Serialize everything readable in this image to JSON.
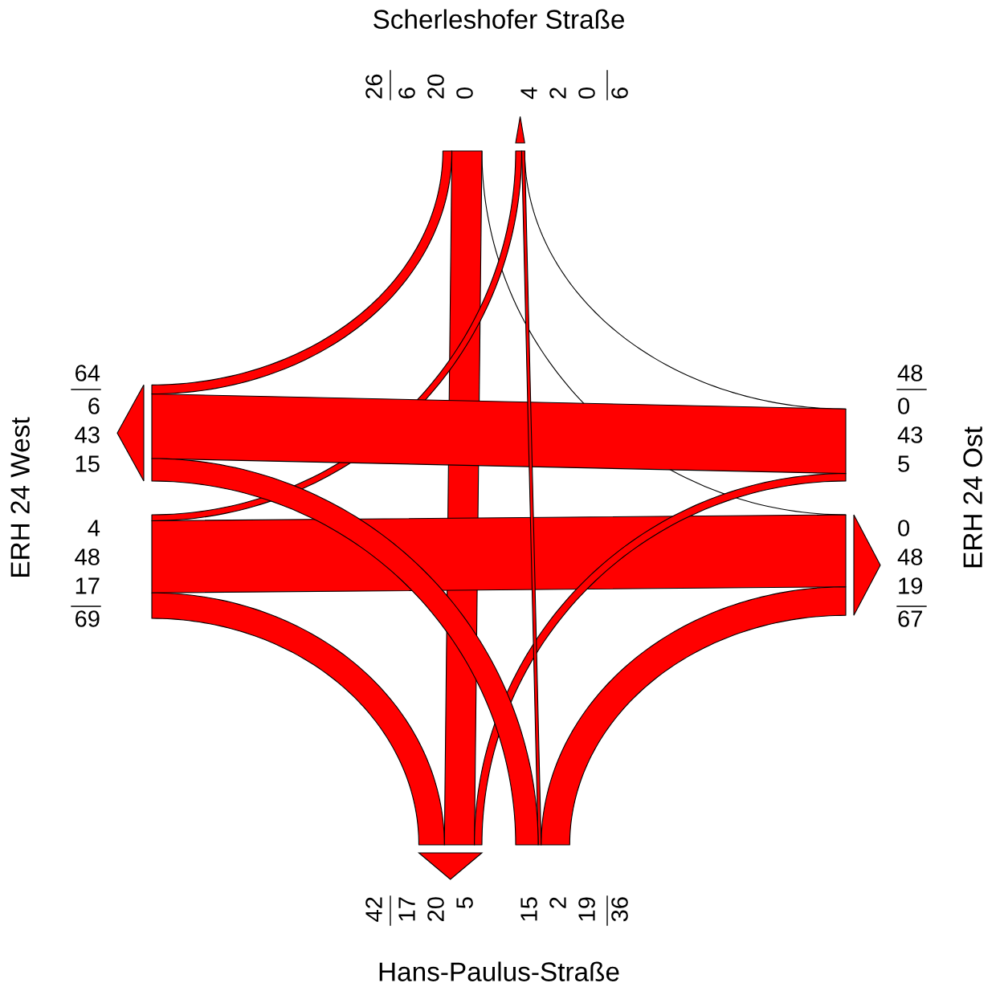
{
  "chart_data": {
    "type": "other",
    "categories": [
      "Scherleshofer Straße",
      "ERH 24 West",
      "ERH 24 Ost",
      "Hans-Paulus-Straße"
    ],
    "series": [
      {
        "color": "#ff0000",
        "values": [
          null,
          6,
          0,
          20
        ]
      },
      {
        "color": "#ff0000",
        "values": [
          4,
          null,
          48,
          17
        ]
      },
      {
        "color": "#ff0000",
        "values": [
          0,
          43,
          null,
          5
        ]
      },
      {
        "color": "#ff0000",
        "values": [
          2,
          15,
          19,
          null
        ]
      }
    ],
    "data_labels": true,
    "annotations": [
      "4",
      "2",
      "0",
      "15",
      "43",
      "6",
      "0",
      "48",
      "19",
      "5",
      "20",
      "17"
    ],
    "totals": [
      [
        "26",
        "6"
      ],
      [
        "69",
        "64"
      ],
      [
        "48",
        "67"
      ],
      [
        "36",
        "42"
      ]
    ]
  }
}
